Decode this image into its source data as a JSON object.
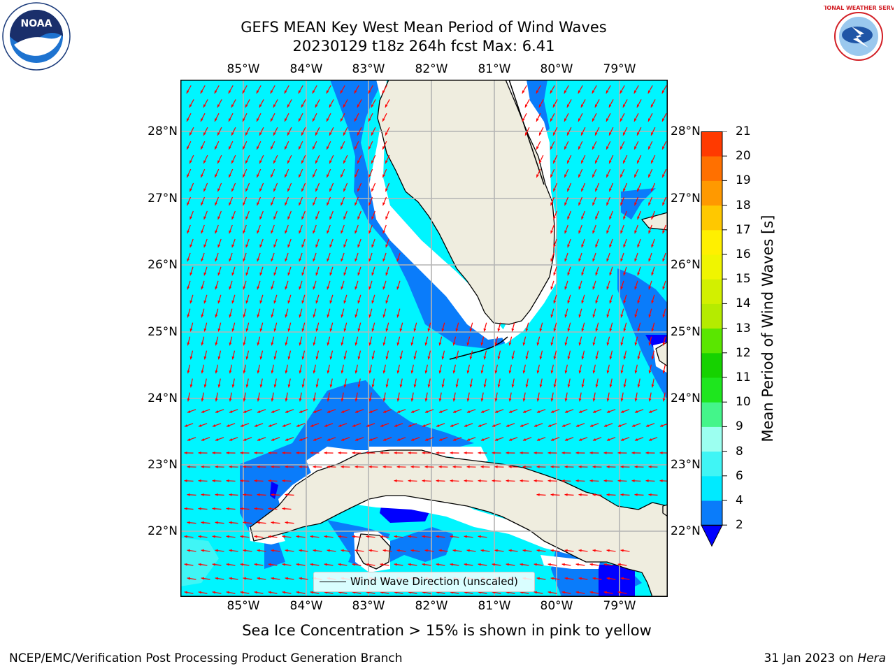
{
  "title": {
    "line1": "GEFS MEAN Key West Mean Period of Wind Waves",
    "line2": "20230129 t18z 264h fcst   Max: 6.41"
  },
  "logos": {
    "left": {
      "text": "NOAA",
      "icon": "noaa-logo-icon"
    },
    "right": {
      "text": "NATIONAL WEATHER SERVICE",
      "icon": "nws-logo-icon"
    }
  },
  "axes": {
    "lon_labels": [
      "85°W",
      "84°W",
      "83°W",
      "82°W",
      "81°W",
      "80°W",
      "79°W"
    ],
    "lat_labels": [
      "28°N",
      "27°N",
      "26°N",
      "25°N",
      "24°N",
      "23°N",
      "22°N"
    ]
  },
  "legend": {
    "label": "Wind Wave Direction (unscaled)"
  },
  "colorbar": {
    "label": "Mean Period of Wind Waves [s]",
    "ticks": [
      "2",
      "4",
      "6",
      "8",
      "9",
      "10",
      "11",
      "12",
      "13",
      "14",
      "15",
      "16",
      "17",
      "18",
      "19",
      "20",
      "21"
    ],
    "colors": [
      "#0a7cfa",
      "#00eaff",
      "#40f5f5",
      "#9cfff0",
      "#44f58a",
      "#1ee61e",
      "#16d200",
      "#5ae600",
      "#b5eb00",
      "#d2f000",
      "#f0f500",
      "#fff000",
      "#ffc800",
      "#ff9900",
      "#ff7000",
      "#ff3a00",
      "#ff0000"
    ],
    "under_color": "#0000ff"
  },
  "map_colors": {
    "ocean_4_6": "#00f5ff",
    "ocean_2_4": "#0a7cfa",
    "ocean_lt_2": "#0000ff",
    "land": "#efeddf",
    "arrows": "#ff0000",
    "grid": "#b4b4b4"
  },
  "note": "Sea Ice Concentration > 15% is shown in pink to yellow",
  "footer": {
    "left": "NCEP/EMC/Verification Post Processing Product Generation Branch",
    "right_date": "31 Jan 2023 on ",
    "right_host": "Hera"
  }
}
